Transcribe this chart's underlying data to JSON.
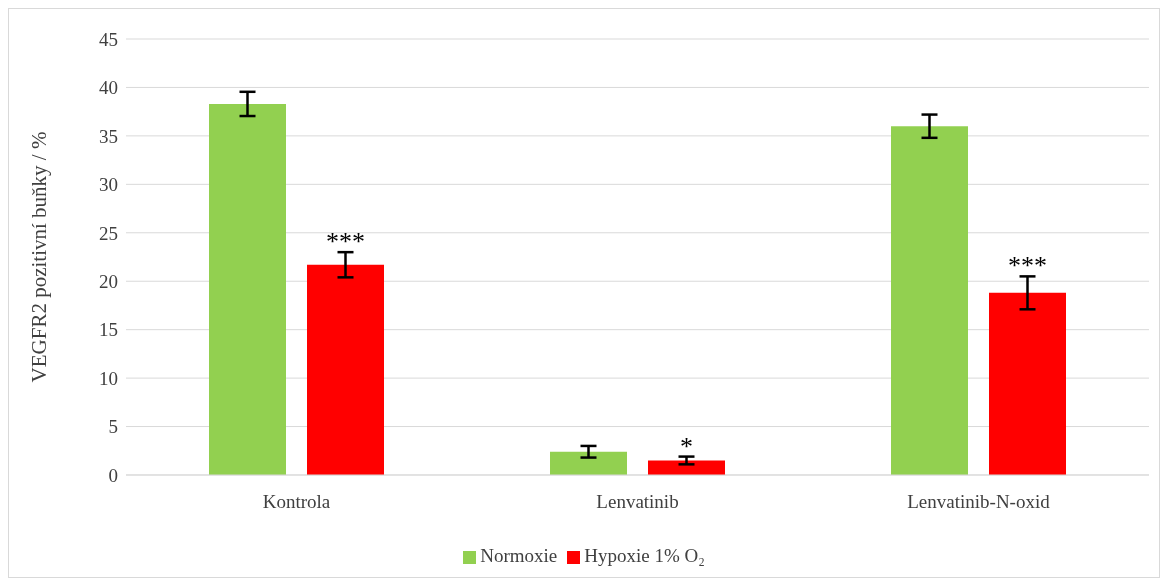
{
  "chart_data": {
    "type": "bar",
    "ylabel": "VEGFR2 pozitivní buňky / %",
    "categories": [
      "Kontrola",
      "Lenvatinib",
      "Lenvatinib-N-oxid"
    ],
    "series": [
      {
        "name": "Normoxie",
        "color": "#92d050",
        "values": [
          38.3,
          2.4,
          36.0
        ],
        "errors": [
          1.25,
          0.6,
          1.2
        ]
      },
      {
        "name": "Hypoxie 1% O₂",
        "color": "#ff0000",
        "values": [
          21.7,
          1.5,
          18.8
        ],
        "errors": [
          1.3,
          0.4,
          1.7
        ]
      }
    ],
    "ylim": [
      0,
      45
    ],
    "yticks": [
      0,
      5,
      10,
      15,
      20,
      25,
      30,
      35,
      40,
      45
    ],
    "grid": "y",
    "legend": "bottom",
    "annotations": [
      "***",
      "*",
      "***"
    ]
  }
}
